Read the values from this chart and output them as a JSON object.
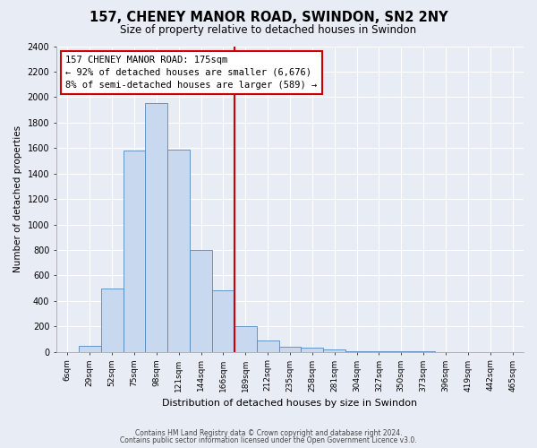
{
  "title": "157, CHENEY MANOR ROAD, SWINDON, SN2 2NY",
  "subtitle": "Size of property relative to detached houses in Swindon",
  "xlabel": "Distribution of detached houses by size in Swindon",
  "ylabel": "Number of detached properties",
  "bar_labels": [
    "6sqm",
    "29sqm",
    "52sqm",
    "75sqm",
    "98sqm",
    "121sqm",
    "144sqm",
    "166sqm",
    "189sqm",
    "212sqm",
    "235sqm",
    "258sqm",
    "281sqm",
    "304sqm",
    "327sqm",
    "350sqm",
    "373sqm",
    "396sqm",
    "419sqm",
    "442sqm",
    "465sqm"
  ],
  "bar_values": [
    0,
    50,
    500,
    1580,
    1950,
    1590,
    800,
    480,
    200,
    90,
    40,
    30,
    20,
    5,
    3,
    2,
    2,
    1,
    0,
    0,
    0
  ],
  "red_line_index": 7,
  "annotation_line1": "157 CHENEY MANOR ROAD: 175sqm",
  "annotation_line2": "← 92% of detached houses are smaller (6,676)",
  "annotation_line3": "8% of semi-detached houses are larger (589) →",
  "bar_color": "#c8d8ee",
  "bar_edge_color": "#5588bb",
  "red_line_color": "#cc0000",
  "annotation_box_facecolor": "#ffffff",
  "annotation_box_edgecolor": "#cc0000",
  "footer_line1": "Contains HM Land Registry data © Crown copyright and database right 2024.",
  "footer_line2": "Contains public sector information licensed under the Open Government Licence v3.0.",
  "ylim": [
    0,
    2400
  ],
  "yticks": [
    0,
    200,
    400,
    600,
    800,
    1000,
    1200,
    1400,
    1600,
    1800,
    2000,
    2200,
    2400
  ],
  "bg_color": "#e8edf5",
  "plot_bg_color": "#e8edf5",
  "grid_color": "#ffffff",
  "spine_color": "#999999"
}
